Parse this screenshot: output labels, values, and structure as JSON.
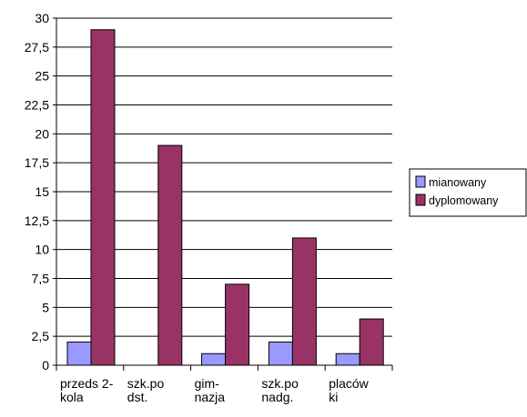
{
  "chart_data": {
    "type": "bar",
    "title": "",
    "categories": [
      [
        "przedszkola-partial-line-1",
        "przeds 2-",
        "kola"
      ],
      [
        "szkola-podstawowa",
        "szk.po",
        "dst."
      ],
      [
        "gimnazja",
        "gim-",
        "nazja"
      ],
      [
        "szkola-ponadgimnazjalna",
        "szk.po",
        "nadg."
      ],
      [
        "placowki",
        "placów",
        "ki"
      ]
    ],
    "category_lines": [
      [
        "przeds 2-",
        "kola"
      ],
      [
        "szk.po",
        "dst."
      ],
      [
        "gim-",
        "nazja"
      ],
      [
        "szk.po",
        "nadg."
      ],
      [
        "placów",
        "ki"
      ]
    ],
    "series": [
      {
        "name": "mianowany",
        "values": [
          2,
          0,
          1,
          2,
          1
        ],
        "color": "#9999ff"
      },
      {
        "name": "dyplomowany",
        "values": [
          29,
          19,
          7,
          11,
          4
        ],
        "color": "#993366"
      }
    ],
    "ylim": [
      0,
      30
    ],
    "yticks": [
      "0",
      "2,5",
      "5",
      "7,5",
      "10",
      "12,5",
      "15",
      "17,5",
      "20",
      "22,5",
      "25",
      "27,5",
      "30"
    ],
    "ytick_values": [
      0,
      2.5,
      5,
      7.5,
      10,
      12.5,
      15,
      17.5,
      20,
      22.5,
      25,
      27.5,
      30
    ],
    "grid": true,
    "legend_position": "right"
  }
}
